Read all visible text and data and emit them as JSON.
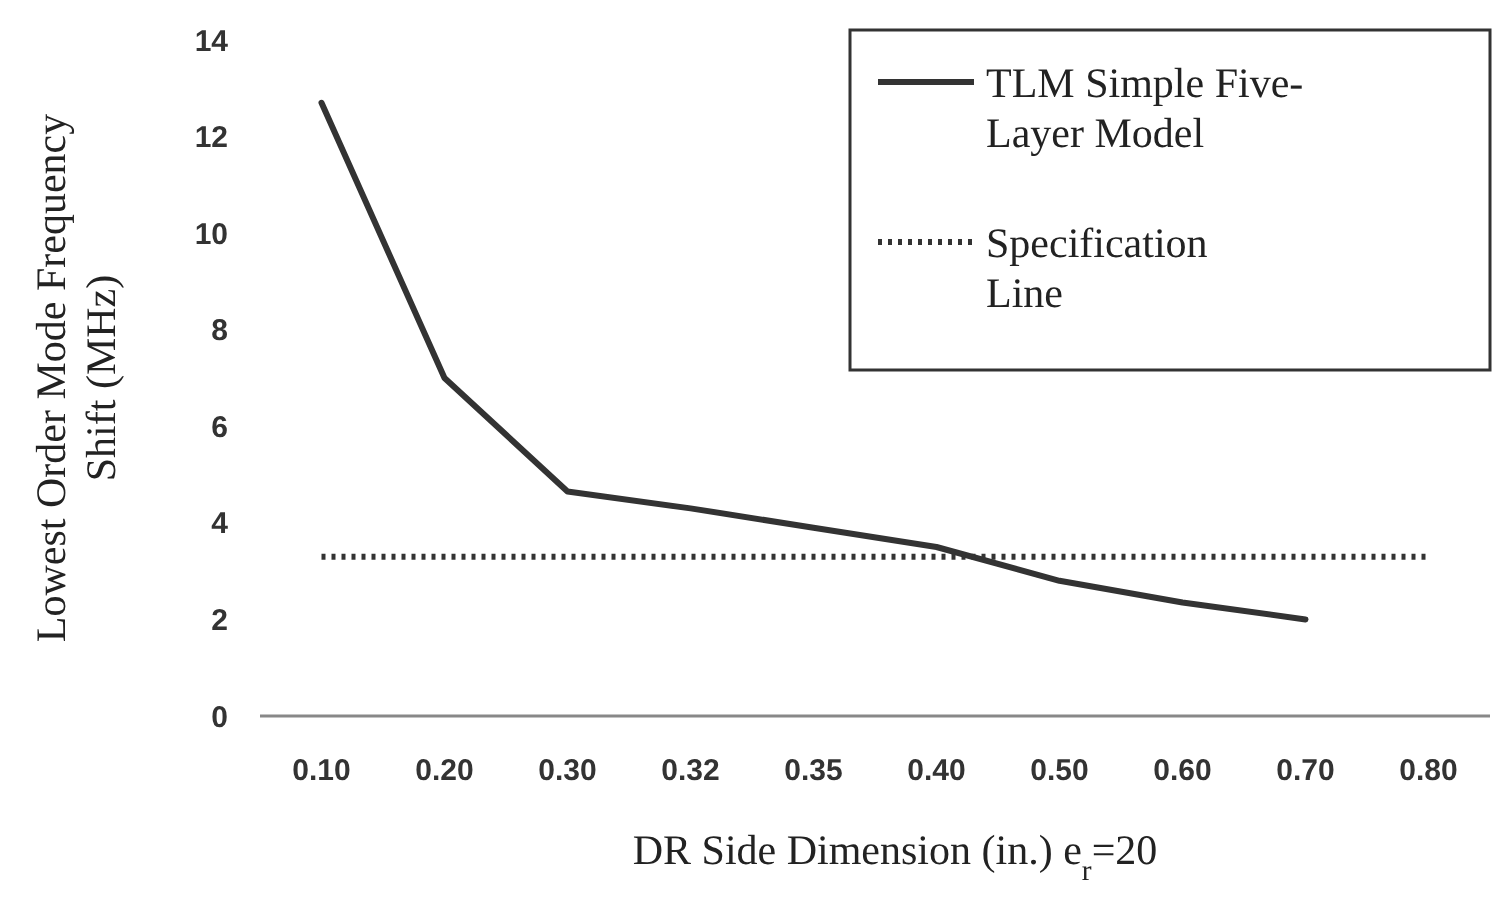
{
  "chart_data": {
    "type": "line",
    "xlabel": "DR Side Dimension (in.) e$_{r}$=20",
    "ylabel": "Lowest Order Mode Frequency Shift (MHz)",
    "categories": [
      "0.10",
      "0.20",
      "0.30",
      "0.32",
      "0.35",
      "0.40",
      "0.50",
      "0.60",
      "0.70",
      "0.80"
    ],
    "series": [
      {
        "name": "TLM Simple Five-Layer Model",
        "color": "#333333",
        "line_style": "solid",
        "values": [
          12.7,
          7.0,
          4.65,
          4.3,
          3.9,
          3.5,
          2.8,
          2.35,
          2.0,
          null
        ]
      },
      {
        "name": "Specification Line",
        "color": "#333333",
        "line_style": "dotted",
        "values": [
          3.3,
          3.3,
          3.3,
          3.3,
          3.3,
          3.3,
          3.3,
          3.3,
          3.3,
          3.3
        ]
      }
    ],
    "ylim": [
      0,
      14
    ],
    "yticks": [
      0,
      2,
      4,
      6,
      8,
      10,
      12,
      14
    ],
    "grid": false,
    "legend": "top right",
    "marker": "none"
  }
}
